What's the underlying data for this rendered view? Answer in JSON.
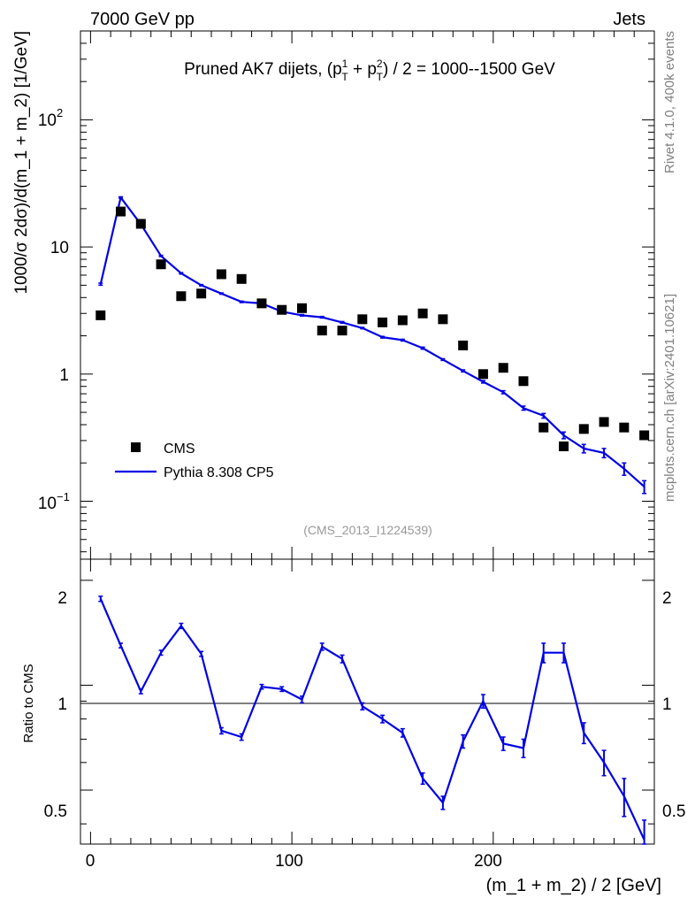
{
  "header": {
    "left": "7000 GeV pp",
    "right": "Jets"
  },
  "side_labels": {
    "right_top": "Rivet 4.1.0,  400k events",
    "right_bottom": "mcplots.cern.ch [arXiv:2401.10621]"
  },
  "colors": {
    "mc": "#0000e6",
    "data": "#000000"
  },
  "chart_data": {
    "type": "scatter",
    "title": "Pruned AK7 dijets, (p_T^1 + p_T^2) / 2 = 1000--1500 GeV",
    "title_parts": {
      "pre": "Pruned AK7 dijets, (p",
      "sub": "T",
      "sup1": "1",
      "sup2": "2",
      "plus": " + p",
      "post": ") / 2 = 1000--1500 GeV"
    },
    "xlabel": "(m_1 + m_2) / 2 [GeV]",
    "ylabel": "1000/σ   2dσ)/d(m_1 + m_2) [1/GeV]",
    "ratio_ylabel": "Ratio to CMS",
    "analysis_id": "(CMS_2013_I1224539)",
    "xlim": [
      -5,
      280
    ],
    "ylim": [
      0.035,
      500
    ],
    "ratio_ylim": [
      0.35,
      2.3
    ],
    "x_ticks": [
      "0",
      "100",
      "200"
    ],
    "y_ticks": {
      "t0": "10",
      "t0sup": "−1",
      "t1": "1",
      "t2": "10",
      "t3": "10",
      "t3sup": "2"
    },
    "ratio_ticks": [
      "0.5",
      "1",
      "2"
    ],
    "legend": {
      "data": "CMS",
      "mc": "Pythia 8.308 CP5"
    },
    "x": [
      5,
      15,
      25,
      35,
      45,
      55,
      65,
      75,
      85,
      95,
      105,
      115,
      125,
      135,
      145,
      155,
      165,
      175,
      185,
      195,
      205,
      215,
      225,
      235,
      245,
      255,
      265,
      275
    ],
    "series": [
      {
        "name": "CMS",
        "values": [
          2.9,
          19,
          15.2,
          7.3,
          4.1,
          4.3,
          6.1,
          5.6,
          3.6,
          3.2,
          3.3,
          2.2,
          2.2,
          2.7,
          2.55,
          2.65,
          3.0,
          2.7,
          1.68,
          1.0,
          1.12,
          0.88,
          0.38,
          0.27,
          0.37,
          0.42,
          0.38,
          0.33
        ]
      },
      {
        "name": "Pythia 8.308 CP5",
        "values": [
          5.1,
          24.5,
          15.1,
          8.5,
          6.2,
          5.0,
          4.3,
          3.7,
          3.6,
          3.1,
          2.9,
          2.8,
          2.55,
          2.3,
          1.95,
          1.85,
          1.6,
          1.3,
          1.06,
          0.87,
          0.72,
          0.54,
          0.47,
          0.33,
          0.26,
          0.24,
          0.18,
          0.13
        ],
        "errors": [
          0.1,
          0.3,
          0.2,
          0.1,
          0.08,
          0.06,
          0.05,
          0.05,
          0.05,
          0.04,
          0.04,
          0.04,
          0.04,
          0.03,
          0.03,
          0.03,
          0.03,
          0.02,
          0.02,
          0.02,
          0.02,
          0.02,
          0.02,
          0.02,
          0.02,
          0.02,
          0.02,
          0.015
        ]
      }
    ],
    "ratio": {
      "values": [
        1.77,
        1.3,
        0.96,
        1.24,
        1.48,
        1.23,
        0.74,
        0.71,
        0.99,
        0.975,
        0.91,
        1.29,
        1.19,
        0.87,
        0.8,
        0.73,
        0.54,
        0.46,
        0.69,
        0.9,
        0.68,
        0.66,
        1.24,
        1.24,
        0.73,
        0.6,
        0.48,
        0.36
      ],
      "errors": [
        0.03,
        0.02,
        0.015,
        0.02,
        0.025,
        0.02,
        0.015,
        0.015,
        0.015,
        0.015,
        0.02,
        0.03,
        0.03,
        0.02,
        0.02,
        0.02,
        0.02,
        0.02,
        0.03,
        0.04,
        0.03,
        0.04,
        0.08,
        0.08,
        0.05,
        0.05,
        0.06,
        0.05
      ]
    }
  }
}
